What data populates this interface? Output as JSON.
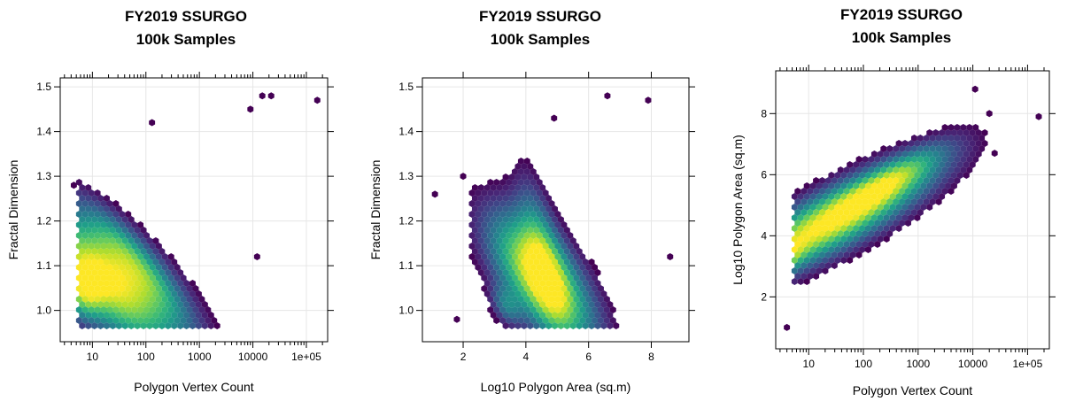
{
  "chart_data": [
    {
      "type": "heatmap",
      "subtype": "hexbin-density",
      "title": [
        "FY2019 SSURGO",
        "100k Samples"
      ],
      "xlabel": "Polygon Vertex Count",
      "ylabel": "Fractal Dimension",
      "x_scale": "log10",
      "xlim": [
        2.5,
        250000
      ],
      "ylim": [
        0.93,
        1.52
      ],
      "x_ticks": [
        10,
        100,
        1000,
        10000,
        100000
      ],
      "x_tick_labels": [
        "10",
        "100",
        "1000",
        "10000",
        "1e+05"
      ],
      "y_ticks": [
        1.0,
        1.1,
        1.2,
        1.3,
        1.4,
        1.5
      ],
      "y_tick_labels": [
        "1.0",
        "1.1",
        "1.2",
        "1.3",
        "1.4",
        "1.5"
      ],
      "grid": true,
      "colormap": "viridis",
      "density_center": {
        "x": 40,
        "y": 1.05
      },
      "outliers": [
        {
          "x": 160000,
          "y": 1.47
        },
        {
          "x": 22000,
          "y": 1.48
        },
        {
          "x": 15000,
          "y": 1.48
        },
        {
          "x": 9000,
          "y": 1.45
        },
        {
          "x": 130,
          "y": 1.42
        },
        {
          "x": 4.5,
          "y": 1.28
        },
        {
          "x": 12000,
          "y": 1.12
        }
      ]
    },
    {
      "type": "heatmap",
      "subtype": "hexbin-density",
      "title": [
        "FY2019 SSURGO",
        "100k Samples"
      ],
      "xlabel": "Log10 Polygon Area (sq.m)",
      "ylabel": "Fractal Dimension",
      "x_scale": "linear",
      "xlim": [
        0.7,
        9.2
      ],
      "ylim": [
        0.93,
        1.52
      ],
      "x_ticks": [
        2,
        4,
        6,
        8
      ],
      "x_tick_labels": [
        "2",
        "4",
        "6",
        "8"
      ],
      "y_ticks": [
        1.0,
        1.1,
        1.2,
        1.3,
        1.4,
        1.5
      ],
      "y_tick_labels": [
        "1.0",
        "1.1",
        "1.2",
        "1.3",
        "1.4",
        "1.5"
      ],
      "grid": true,
      "colormap": "viridis",
      "density_center": {
        "x": 4.5,
        "y": 1.05
      },
      "outliers": [
        {
          "x": 1.1,
          "y": 1.26
        },
        {
          "x": 2.0,
          "y": 1.3
        },
        {
          "x": 6.6,
          "y": 1.48
        },
        {
          "x": 7.9,
          "y": 1.47
        },
        {
          "x": 8.6,
          "y": 1.12
        },
        {
          "x": 4.9,
          "y": 1.43
        },
        {
          "x": 1.8,
          "y": 0.98
        }
      ]
    },
    {
      "type": "heatmap",
      "subtype": "hexbin-density",
      "title": [
        "FY2019 SSURGO",
        "100k Samples"
      ],
      "xlabel": "Polygon Vertex Count",
      "ylabel": "Log10 Polygon Area (sq.m)",
      "x_scale": "log10",
      "xlim": [
        2.5,
        250000
      ],
      "ylim": [
        0.3,
        9.4
      ],
      "x_ticks": [
        10,
        100,
        1000,
        10000,
        100000
      ],
      "x_tick_labels": [
        "10",
        "100",
        "1000",
        "10000",
        "1e+05"
      ],
      "y_ticks": [
        2,
        4,
        6,
        8
      ],
      "y_tick_labels": [
        "2",
        "4",
        "6",
        "8"
      ],
      "grid": true,
      "colormap": "viridis",
      "density_center": {
        "x": 40,
        "y": 4.5
      },
      "outliers": [
        {
          "x": 160000,
          "y": 7.9
        },
        {
          "x": 11000,
          "y": 8.8
        },
        {
          "x": 4,
          "y": 1.0
        },
        {
          "x": 25000,
          "y": 6.7
        },
        {
          "x": 20000,
          "y": 8.0
        }
      ]
    }
  ]
}
